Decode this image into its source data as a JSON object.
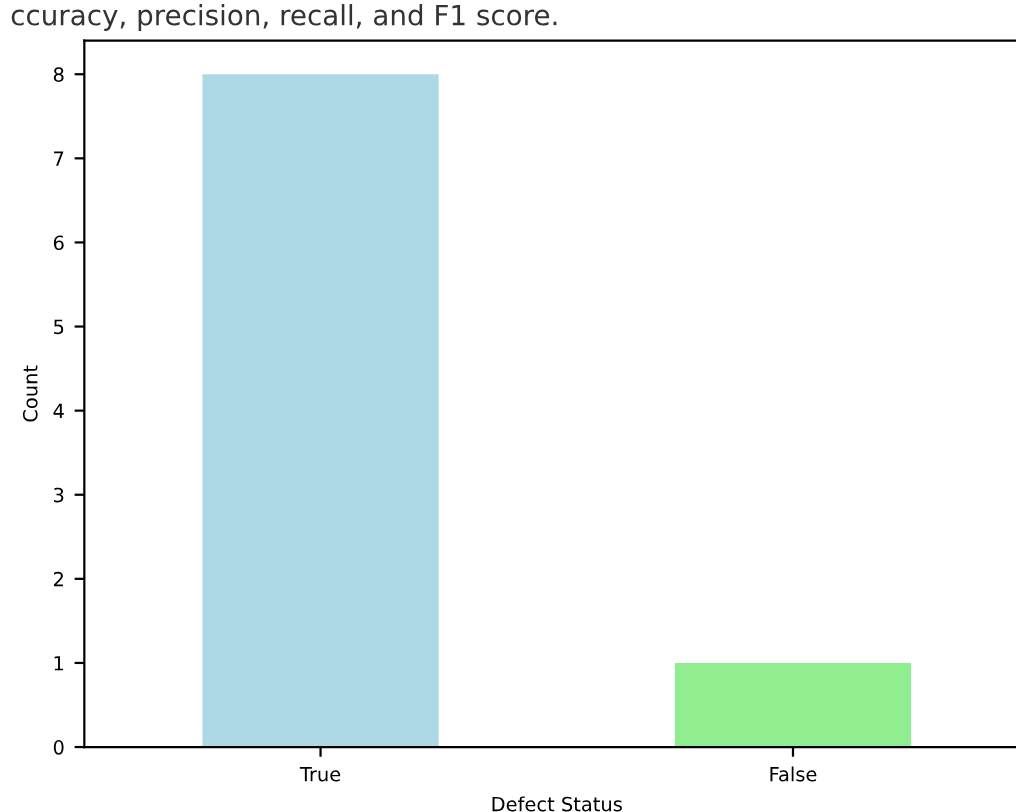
{
  "chart_data": {
    "type": "bar",
    "xlabel": "Defect Status",
    "ylabel": "Count",
    "categories": [
      "True",
      "False"
    ],
    "values": [
      8,
      1
    ],
    "colors": [
      "#add8e6",
      "#90ee90"
    ],
    "ylim": [
      0,
      8.4
    ],
    "yticks": [
      0,
      1,
      2,
      3,
      4,
      5,
      6,
      7,
      8
    ],
    "grid": false,
    "annotations": [
      "ccuracy, precision, recall, and F1 score."
    ]
  }
}
